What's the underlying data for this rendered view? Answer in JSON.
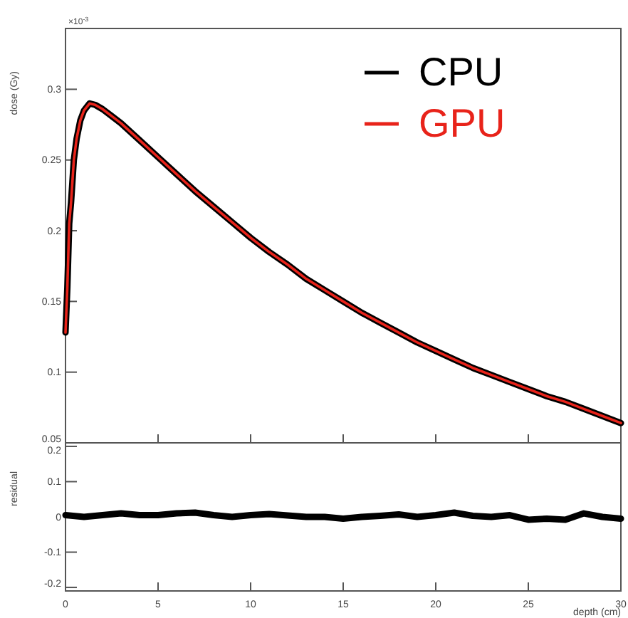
{
  "chart_data": [
    {
      "type": "line",
      "ylabel": "dose (Gy)",
      "annotations": [
        "×10$^{-3}$"
      ],
      "xlim": [
        0,
        30
      ],
      "xticks": [
        0,
        5,
        10,
        15,
        20,
        25,
        30
      ],
      "ylim": [
        0.05,
        0.343
      ],
      "yticks": [
        0.05,
        0.1,
        0.15,
        0.2,
        0.25,
        0.3
      ],
      "tick_labels": "y",
      "legend": "top right",
      "grid": false,
      "marker": "none",
      "x": [
        0,
        0.1,
        0.2,
        0.3,
        0.45,
        0.6,
        0.8,
        1.0,
        1.3,
        1.6,
        2,
        2.5,
        3,
        4,
        5,
        6,
        7,
        8,
        9,
        10,
        11,
        12,
        13,
        14,
        15,
        16,
        17,
        18,
        19,
        20,
        21,
        22,
        23,
        24,
        25,
        26,
        27,
        28,
        29,
        30
      ],
      "series": [
        {
          "name": "CPU",
          "color": "#000000",
          "values": [
            0.128,
            0.16,
            0.205,
            0.22,
            0.25,
            0.265,
            0.278,
            0.285,
            0.29,
            0.289,
            0.286,
            0.281,
            0.276,
            0.264,
            0.252,
            0.24,
            0.228,
            0.217,
            0.206,
            0.195,
            0.185,
            0.176,
            0.166,
            0.158,
            0.15,
            0.142,
            0.135,
            0.128,
            0.121,
            0.115,
            0.109,
            0.103,
            0.098,
            0.093,
            0.088,
            0.083,
            0.079,
            0.074,
            0.069,
            0.064
          ]
        },
        {
          "name": "GPU",
          "color": "#e8231a",
          "values": [
            0.128,
            0.16,
            0.205,
            0.22,
            0.25,
            0.265,
            0.278,
            0.285,
            0.29,
            0.289,
            0.286,
            0.281,
            0.276,
            0.264,
            0.252,
            0.24,
            0.228,
            0.217,
            0.206,
            0.195,
            0.185,
            0.176,
            0.166,
            0.158,
            0.15,
            0.142,
            0.135,
            0.128,
            0.121,
            0.115,
            0.109,
            0.103,
            0.098,
            0.093,
            0.088,
            0.083,
            0.079,
            0.074,
            0.069,
            0.064
          ]
        }
      ]
    },
    {
      "type": "line",
      "xlabel": "depth (cm)",
      "ylabel": "residual",
      "xlim": [
        0,
        30
      ],
      "xticks": [
        0,
        5,
        10,
        15,
        20,
        25,
        30
      ],
      "ylim": [
        -0.21,
        0.21
      ],
      "yticks": [
        -0.2,
        -0.1,
        0,
        0.1,
        0.2
      ],
      "grid": false,
      "legend": false,
      "marker": "none",
      "x": [
        0,
        1,
        2,
        3,
        4,
        5,
        6,
        7,
        8,
        9,
        10,
        11,
        12,
        13,
        14,
        15,
        16,
        17,
        18,
        19,
        20,
        21,
        22,
        23,
        24,
        25,
        26,
        27,
        28,
        29,
        30
      ],
      "series": [
        {
          "color": "#000000",
          "values": [
            0.005,
            0.0,
            0.005,
            0.01,
            0.005,
            0.005,
            0.01,
            0.012,
            0.005,
            0.0,
            0.005,
            0.008,
            0.004,
            0.0,
            0.0,
            -0.005,
            0.0,
            0.003,
            0.007,
            0.0,
            0.005,
            0.012,
            0.003,
            0.0,
            0.005,
            -0.008,
            -0.005,
            -0.008,
            0.01,
            0.0,
            -0.005
          ]
        }
      ]
    }
  ]
}
